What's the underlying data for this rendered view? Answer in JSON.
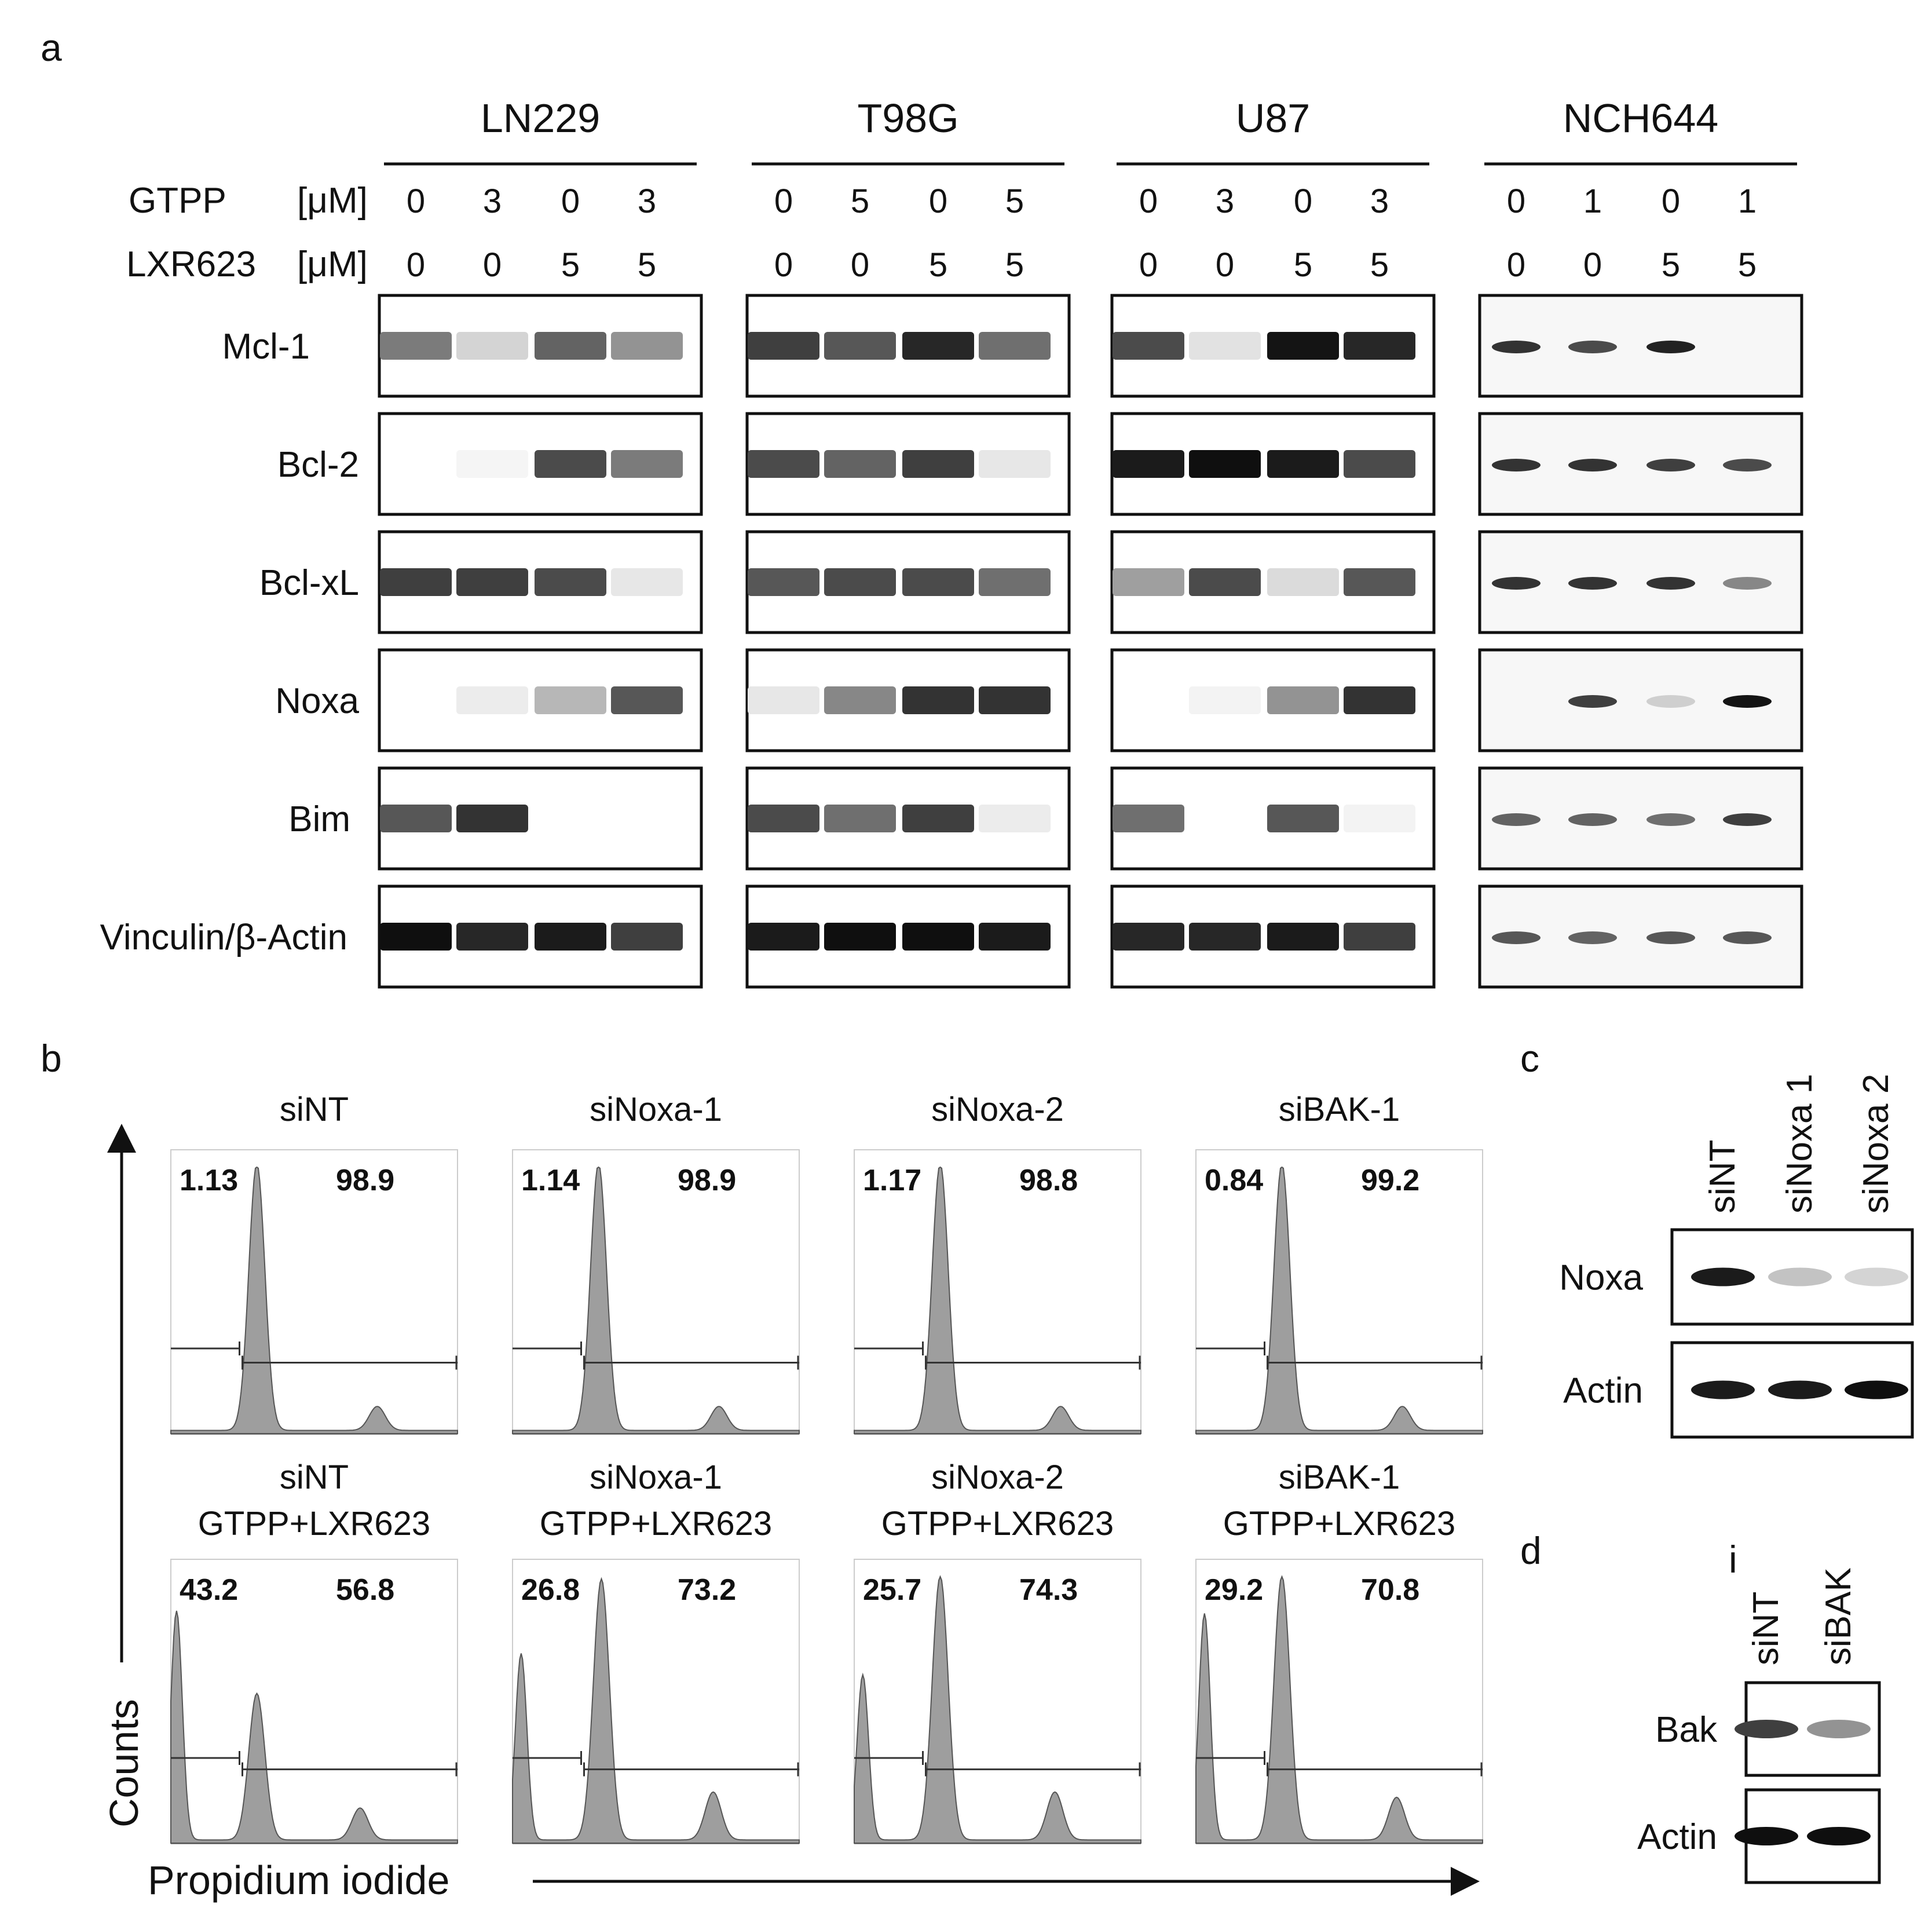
{
  "panel_a": {
    "letter": "a",
    "row_labels": {
      "gtpp": "GTPP",
      "lxr": "LXR623",
      "unit": "[μM]"
    },
    "cell_lines": [
      {
        "name": "LN229",
        "gtpp": [
          "0",
          "3",
          "0",
          "3"
        ],
        "lxr": [
          "0",
          "0",
          "5",
          "5"
        ]
      },
      {
        "name": "T98G",
        "gtpp": [
          "0",
          "5",
          "0",
          "5"
        ],
        "lxr": [
          "0",
          "0",
          "5",
          "5"
        ]
      },
      {
        "name": "U87",
        "gtpp": [
          "0",
          "3",
          "0",
          "3"
        ],
        "lxr": [
          "0",
          "0",
          "5",
          "5"
        ]
      },
      {
        "name": "NCH644",
        "gtpp": [
          "0",
          "1",
          "0",
          "1"
        ],
        "lxr": [
          "0",
          "0",
          "5",
          "5"
        ]
      }
    ],
    "proteins": [
      "Mcl-1",
      "Bcl-2",
      "Bcl-xL",
      "Noxa",
      "Bim",
      "Vinculin/β-Actin"
    ],
    "band_intensity": [
      [
        [
          0.55,
          0.18,
          0.65,
          0.45
        ],
        [
          0.8,
          0.7,
          0.9,
          0.6
        ],
        [
          0.75,
          0.12,
          0.98,
          0.9
        ],
        [
          0.85,
          0.75,
          0.92,
          0.0
        ]
      ],
      [
        [
          0.0,
          0.04,
          0.75,
          0.55
        ],
        [
          0.75,
          0.65,
          0.8,
          0.1
        ],
        [
          0.95,
          1.0,
          0.95,
          0.75
        ],
        [
          0.85,
          0.85,
          0.8,
          0.75
        ]
      ],
      [
        [
          0.8,
          0.8,
          0.75,
          0.1
        ],
        [
          0.7,
          0.75,
          0.75,
          0.6
        ],
        [
          0.4,
          0.75,
          0.15,
          0.7
        ],
        [
          0.85,
          0.85,
          0.85,
          0.5
        ]
      ],
      [
        [
          0.0,
          0.08,
          0.3,
          0.7
        ],
        [
          0.1,
          0.5,
          0.85,
          0.85
        ],
        [
          0.0,
          0.05,
          0.45,
          0.85
        ],
        [
          0.0,
          0.8,
          0.2,
          0.98
        ]
      ],
      [
        [
          0.7,
          0.85,
          0.0,
          0.0
        ],
        [
          0.75,
          0.6,
          0.8,
          0.08
        ],
        [
          0.6,
          0.0,
          0.7,
          0.05
        ],
        [
          0.65,
          0.65,
          0.6,
          0.8
        ]
      ],
      [
        [
          1.0,
          0.9,
          0.95,
          0.8
        ],
        [
          0.95,
          1.0,
          1.0,
          0.95
        ],
        [
          0.9,
          0.9,
          0.95,
          0.8
        ],
        [
          0.7,
          0.65,
          0.7,
          0.7
        ]
      ]
    ]
  },
  "panel_b": {
    "letter": "b",
    "ylabel": "Counts",
    "xlabel": "Propidium iodide",
    "top_row": [
      {
        "title": "siNT",
        "left": "1.13",
        "right": "98.9"
      },
      {
        "title": "siNoxa-1",
        "left": "1.14",
        "right": "98.9"
      },
      {
        "title": "siNoxa-2",
        "left": "1.17",
        "right": "98.8"
      },
      {
        "title": "siBAK-1",
        "left": "0.84",
        "right": "99.2"
      }
    ],
    "bottom_row": [
      {
        "title": "siNT",
        "subtitle": "GTPP+LXR623",
        "left": "43.2",
        "right": "56.8"
      },
      {
        "title": "siNoxa-1",
        "subtitle": "GTPP+LXR623",
        "left": "26.8",
        "right": "73.2"
      },
      {
        "title": "siNoxa-2",
        "subtitle": "GTPP+LXR623",
        "left": "25.7",
        "right": "74.3"
      },
      {
        "title": "siBAK-1",
        "subtitle": "GTPP+LXR623",
        "left": "29.2",
        "right": "70.8"
      }
    ]
  },
  "panel_c": {
    "letter": "c",
    "lanes": [
      "siNT",
      "siNoxa 1",
      "siNoxa 2"
    ],
    "rows": [
      {
        "label": "Noxa",
        "intensity": [
          0.95,
          0.25,
          0.18
        ]
      },
      {
        "label": "Actin",
        "intensity": [
          0.95,
          0.95,
          1.0
        ]
      }
    ]
  },
  "panel_d": {
    "letter": "d",
    "marker": "i",
    "lanes": [
      "siNT",
      "siBAK"
    ],
    "rows": [
      {
        "label": "Bak",
        "intensity": [
          0.8,
          0.45
        ]
      },
      {
        "label": "Actin",
        "intensity": [
          1.0,
          1.0
        ]
      }
    ]
  }
}
